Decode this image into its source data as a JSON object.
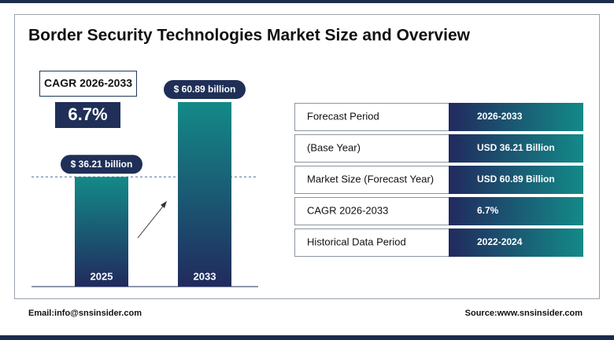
{
  "title": "Border Security Technologies Market Size and Overview",
  "cagr": {
    "label": "CAGR 2026-2033",
    "value": "6.7%"
  },
  "chart_data": {
    "type": "bar",
    "categories": [
      "2025",
      "2033"
    ],
    "values": [
      36.21,
      60.89
    ],
    "value_labels": [
      "$ 36.21 billion",
      "$ 60.89 billion"
    ]
  },
  "table": {
    "rows": [
      [
        "Forecast Period",
        "2026-2033"
      ],
      [
        "(Base Year)",
        "USD  36.21 Billion"
      ],
      [
        "Market Size (Forecast Year)",
        "USD 60.89 Billion"
      ],
      [
        "CAGR 2026-2033",
        "6.7%"
      ],
      [
        "Historical Data Period",
        "2022-2024"
      ]
    ]
  },
  "footer": {
    "email": "Email:info@snsinsider.com",
    "source": "Source:www.snsinsider.com"
  }
}
